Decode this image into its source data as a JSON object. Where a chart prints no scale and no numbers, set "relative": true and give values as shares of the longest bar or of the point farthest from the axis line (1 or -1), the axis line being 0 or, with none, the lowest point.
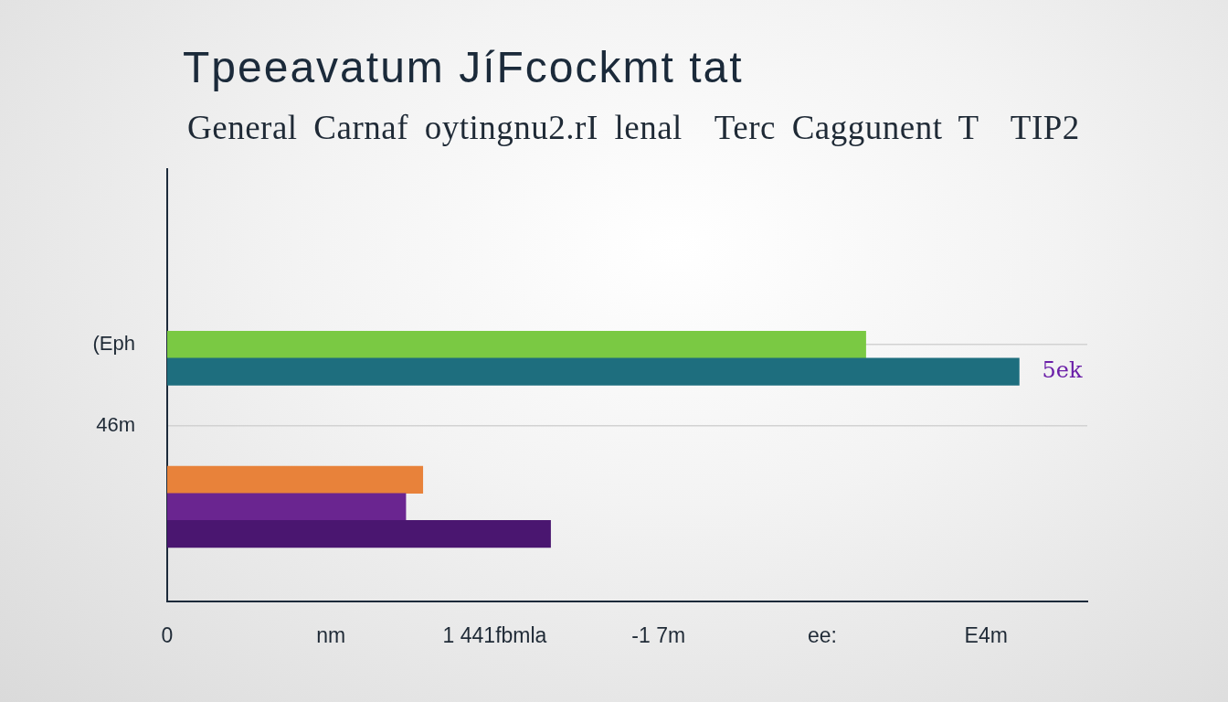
{
  "chart_data": {
    "type": "bar",
    "orientation": "horizontal",
    "relative": true,
    "title": "Tpeeavatum JíFcockmt tat",
    "subtitle": "General Carnaf oytingnu2.rI lenal  Terc Caggunent T  TIP2",
    "categories": [
      null,
      null,
      null,
      null,
      null,
      null,
      "(Eph",
      null,
      null,
      "46m",
      null,
      null,
      null,
      null,
      null,
      null
    ],
    "values": [
      null,
      null,
      null,
      null,
      null,
      null,
      0.82,
      1,
      null,
      null,
      null,
      0.3,
      0.28,
      0.45,
      null,
      null
    ],
    "colors": [
      null,
      null,
      null,
      null,
      null,
      null,
      "#7ac943",
      "#1e6e7e",
      null,
      null,
      null,
      "#e8823a",
      "#6a2590",
      "#4a1670",
      null,
      null
    ],
    "grid": "y",
    "annotations": [
      "0",
      "nm",
      "1 441fbmla",
      "-1 7m",
      "ee:",
      "E4m",
      {
        "text": "5ek",
        "x": 1
      }
    ]
  }
}
